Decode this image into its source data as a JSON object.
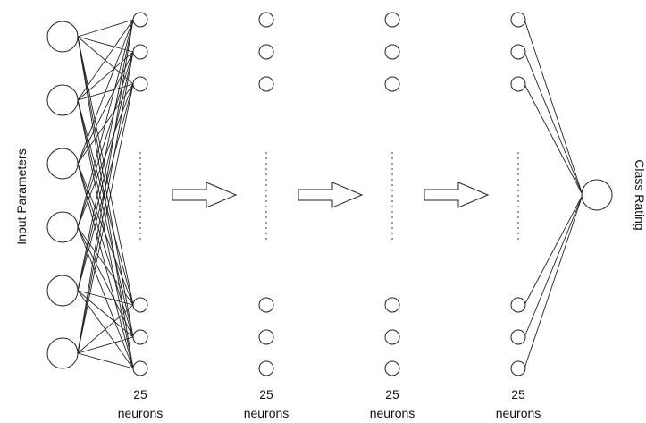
{
  "diagram": {
    "title": "",
    "input_label": "Input Parameters",
    "output_label": "Class Rating",
    "input_nodes": 6,
    "output_nodes": 1,
    "hidden_layers": [
      {
        "count_label": "25",
        "unit_label": "neurons"
      },
      {
        "count_label": "25",
        "unit_label": "neurons"
      },
      {
        "count_label": "25",
        "unit_label": "neurons"
      },
      {
        "count_label": "25",
        "unit_label": "neurons"
      }
    ],
    "line_color": "#222222",
    "node_fill": "#ffffff"
  }
}
